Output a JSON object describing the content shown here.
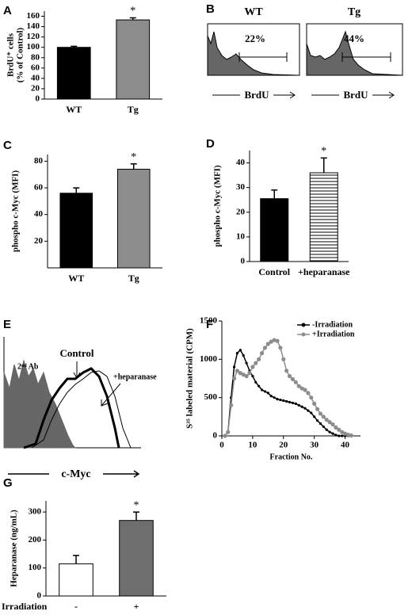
{
  "chart_data": [
    {
      "type": "bar",
      "panel": "A",
      "ylabel": [
        "BrdU⁺ cells",
        "(% of Control)"
      ],
      "categories": [
        "WT",
        "Tg"
      ],
      "values": [
        100,
        153
      ],
      "errors": [
        2,
        4
      ],
      "colors": [
        "#000000",
        "#8c8c8c"
      ],
      "hatch": [
        false,
        false
      ],
      "annotation": "*",
      "ylim": [
        0,
        170
      ],
      "yticks": [
        0,
        20,
        40,
        60,
        80,
        100,
        120,
        140,
        160
      ]
    },
    {
      "type": "flow",
      "panel": "B",
      "panels": [
        {
          "title": "WT",
          "gate_label": "22%"
        },
        {
          "title": "Tg",
          "gate_label": "44%"
        }
      ],
      "xlabel": "BrdU"
    },
    {
      "type": "bar",
      "panel": "C",
      "ylabel": [
        "phospho c-Myc (MFI)"
      ],
      "categories": [
        "WT",
        "Tg"
      ],
      "values": [
        56,
        74
      ],
      "errors": [
        4,
        4
      ],
      "colors": [
        "#000000",
        "#8c8c8c"
      ],
      "hatch": [
        false,
        false
      ],
      "annotation": "*",
      "ylim": [
        0,
        85
      ],
      "yticks": [
        20,
        40,
        60,
        80
      ]
    },
    {
      "type": "bar",
      "panel": "D",
      "ylabel": [
        "phospho c-Myc (MFI)"
      ],
      "categories": [
        "Control",
        "+heparanase"
      ],
      "values": [
        25.5,
        36
      ],
      "errors": [
        3.5,
        6
      ],
      "colors": [
        "#000000",
        "#ffffff"
      ],
      "hatch": [
        false,
        true
      ],
      "annotation": "*",
      "ylim": [
        0,
        45
      ],
      "yticks": [
        0,
        10,
        20,
        30,
        40
      ]
    },
    {
      "type": "flow",
      "panel": "E",
      "labels": [
        "2ⁿᵈ Ab",
        "Control",
        "+heparanase"
      ],
      "xlabel": "c-Myc"
    },
    {
      "type": "line",
      "panel": "F",
      "ylabel": [
        "S³⁵ labeled material (CPM)"
      ],
      "xlabel": "Fraction No.",
      "legend": "upper right",
      "x": [
        1,
        2,
        3,
        4,
        5,
        6,
        7,
        8,
        9,
        10,
        11,
        12,
        13,
        14,
        15,
        16,
        17,
        18,
        19,
        20,
        21,
        22,
        23,
        24,
        25,
        26,
        27,
        28,
        29,
        30,
        31,
        32,
        33,
        34,
        35,
        36,
        37,
        38,
        39,
        40,
        41,
        42
      ],
      "series": [
        {
          "name": "-Irradiation",
          "color": "#000000",
          "values": [
            0,
            50,
            500,
            900,
            1080,
            1120,
            1050,
            950,
            850,
            780,
            700,
            650,
            600,
            580,
            560,
            520,
            500,
            480,
            470,
            460,
            450,
            440,
            430,
            420,
            400,
            380,
            360,
            330,
            300,
            250,
            200,
            160,
            120,
            80,
            50,
            30,
            10,
            0,
            0,
            0,
            0,
            0
          ]
        },
        {
          "name": "+Irradiation",
          "color": "#8c8c8c",
          "values": [
            0,
            50,
            400,
            750,
            850,
            820,
            800,
            780,
            820,
            900,
            950,
            1000,
            1080,
            1150,
            1200,
            1230,
            1250,
            1240,
            1150,
            1000,
            850,
            780,
            740,
            700,
            650,
            620,
            600,
            560,
            500,
            420,
            350,
            290,
            250,
            210,
            180,
            150,
            110,
            80,
            50,
            30,
            15,
            5
          ]
        }
      ],
      "xlim": [
        0,
        45
      ],
      "xticks": [
        0,
        10,
        20,
        30,
        40
      ],
      "ylim": [
        0,
        1500
      ],
      "yticks": [
        0,
        500,
        1000,
        1500
      ]
    },
    {
      "type": "bar",
      "panel": "G",
      "ylabel": [
        "Heparanase (ng/mL)"
      ],
      "row_label": "Irradiation",
      "categories": [
        "-",
        "+"
      ],
      "values": [
        115,
        270
      ],
      "errors": [
        30,
        30
      ],
      "colors": [
        "#ffffff",
        "#6e6e6e"
      ],
      "hatch": [
        false,
        false
      ],
      "annotation": "*",
      "ylim": [
        0,
        340
      ],
      "yticks": [
        0,
        100,
        200,
        300
      ]
    }
  ]
}
